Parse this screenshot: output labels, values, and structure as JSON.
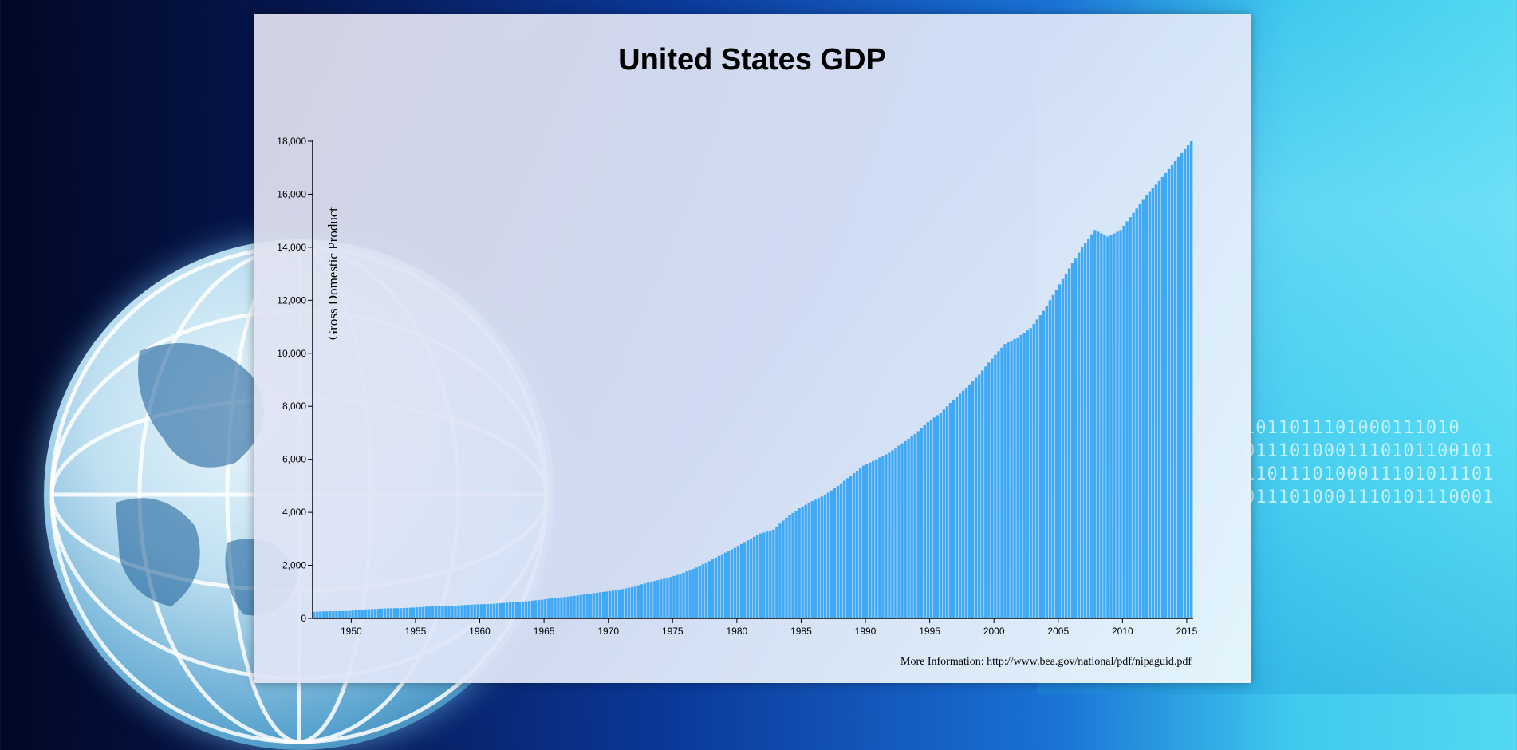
{
  "page": {
    "footer": "More Information: http://www.bea.gov/national/pdf/nipaguid.pdf"
  },
  "background": {
    "binary_lines": [
      "1011011101000111010",
      "0111010001110101100101",
      "1101110100011101011101",
      "0111010001110101110001"
    ]
  },
  "colors": {
    "bar": "#3fa9f5",
    "axis": "#000000"
  },
  "chart_data": {
    "type": "bar",
    "title": "United States GDP",
    "xlabel": "",
    "ylabel": "Gross Domestic Product",
    "xlim": [
      1947,
      2015.5
    ],
    "ylim": [
      0,
      18000
    ],
    "grid": false,
    "legend": "none",
    "x_ticks": [
      1950,
      1955,
      1960,
      1965,
      1970,
      1975,
      1980,
      1985,
      1990,
      1995,
      2000,
      2005,
      2010,
      2015
    ],
    "y_ticks": [
      0,
      2000,
      4000,
      6000,
      8000,
      10000,
      12000,
      14000,
      16000,
      18000
    ],
    "frequency": "quarterly",
    "annual_anchors": [
      [
        1947,
        243
      ],
      [
        1948,
        265
      ],
      [
        1949,
        271
      ],
      [
        1950,
        280
      ],
      [
        1951,
        330
      ],
      [
        1952,
        355
      ],
      [
        1953,
        380
      ],
      [
        1954,
        385
      ],
      [
        1955,
        410
      ],
      [
        1956,
        440
      ],
      [
        1957,
        465
      ],
      [
        1958,
        470
      ],
      [
        1959,
        505
      ],
      [
        1960,
        530
      ],
      [
        1961,
        545
      ],
      [
        1962,
        585
      ],
      [
        1963,
        615
      ],
      [
        1964,
        655
      ],
      [
        1965,
        705
      ],
      [
        1966,
        770
      ],
      [
        1967,
        815
      ],
      [
        1968,
        880
      ],
      [
        1969,
        950
      ],
      [
        1970,
        1010
      ],
      [
        1971,
        1080
      ],
      [
        1972,
        1180
      ],
      [
        1973,
        1320
      ],
      [
        1974,
        1440
      ],
      [
        1975,
        1560
      ],
      [
        1976,
        1720
      ],
      [
        1977,
        1920
      ],
      [
        1978,
        2160
      ],
      [
        1979,
        2420
      ],
      [
        1980,
        2660
      ],
      [
        1981,
        2950
      ],
      [
        1982,
        3200
      ],
      [
        1983,
        3350
      ],
      [
        1984,
        3800
      ],
      [
        1985,
        4150
      ],
      [
        1986,
        4420
      ],
      [
        1987,
        4650
      ],
      [
        1988,
        5000
      ],
      [
        1989,
        5380
      ],
      [
        1990,
        5760
      ],
      [
        1991,
        6000
      ],
      [
        1992,
        6250
      ],
      [
        1993,
        6600
      ],
      [
        1994,
        6950
      ],
      [
        1995,
        7400
      ],
      [
        1996,
        7750
      ],
      [
        1997,
        8250
      ],
      [
        1998,
        8700
      ],
      [
        1999,
        9200
      ],
      [
        2000,
        9800
      ],
      [
        2001,
        10350
      ],
      [
        2002,
        10600
      ],
      [
        2003,
        10950
      ],
      [
        2004,
        11600
      ],
      [
        2005,
        12400
      ],
      [
        2006,
        13200
      ],
      [
        2007,
        14000
      ],
      [
        2008,
        14650
      ],
      [
        2009,
        14400
      ],
      [
        2010,
        14650
      ],
      [
        2011,
        15300
      ],
      [
        2012,
        15950
      ],
      [
        2013,
        16500
      ],
      [
        2014,
        17100
      ],
      [
        2015,
        17700
      ],
      [
        2015.5,
        18000
      ]
    ]
  }
}
